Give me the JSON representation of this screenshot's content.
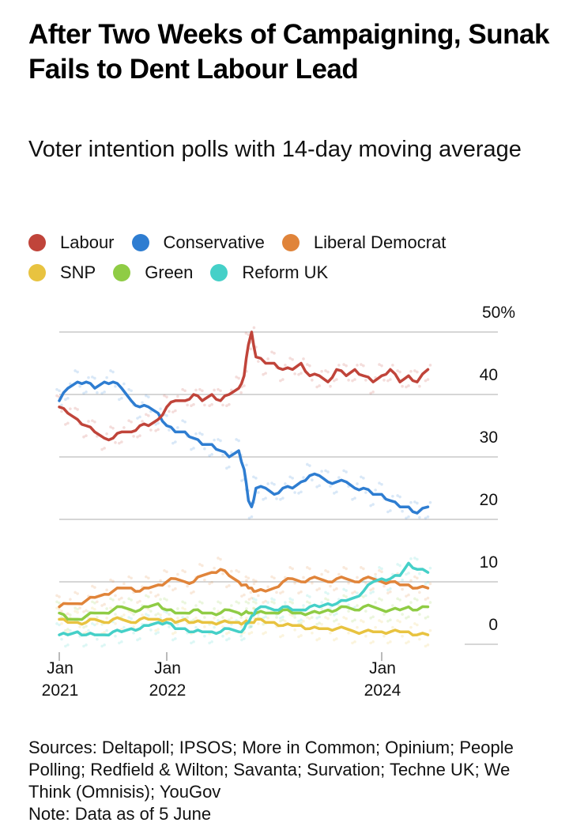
{
  "chart_data": {
    "type": "line",
    "title": "After Two Weeks of Campaigning, Sunak Fails to Dent Labour Lead",
    "subtitle": "Voter intention polls with 14-day moving average",
    "xlabel": "",
    "ylabel": "",
    "ylim": [
      0,
      50
    ],
    "yticks": [
      {
        "value": 50,
        "label": "50%"
      },
      {
        "value": 40,
        "label": "40"
      },
      {
        "value": 30,
        "label": "30"
      },
      {
        "value": 20,
        "label": "20"
      },
      {
        "value": 10,
        "label": "10"
      },
      {
        "value": 0,
        "label": "0"
      }
    ],
    "xlim": [
      2021.0,
      2024.43
    ],
    "xticks": [
      {
        "value": 2021.0,
        "line1": "Jan",
        "line2": "2021"
      },
      {
        "value": 2022.0,
        "line1": "Jan",
        "line2": "2022"
      },
      {
        "value": 2024.0,
        "line1": "Jan",
        "line2": "2024"
      }
    ],
    "grid": true,
    "legend_position": "top",
    "x": [
      2021.0,
      2021.08,
      2021.17,
      2021.25,
      2021.33,
      2021.42,
      2021.5,
      2021.58,
      2021.67,
      2021.75,
      2021.83,
      2021.92,
      2022.0,
      2022.08,
      2022.17,
      2022.25,
      2022.33,
      2022.42,
      2022.5,
      2022.58,
      2022.67,
      2022.72,
      2022.76,
      2022.79,
      2022.83,
      2022.92,
      2023.0,
      2023.08,
      2023.17,
      2023.25,
      2023.33,
      2023.42,
      2023.5,
      2023.58,
      2023.67,
      2023.75,
      2023.83,
      2023.92,
      2024.0,
      2024.08,
      2024.17,
      2024.25,
      2024.33,
      2024.43
    ],
    "series": [
      {
        "name": "Labour",
        "color": "#c0443a",
        "values": [
          38,
          37,
          36,
          35,
          34,
          33,
          33,
          34,
          34,
          35,
          35,
          36,
          38,
          39,
          39,
          40,
          39,
          40,
          39,
          40,
          41,
          43,
          48,
          50,
          46,
          45,
          45,
          44,
          44,
          45,
          43,
          43,
          42,
          44,
          43,
          44,
          43,
          42,
          43,
          44,
          42,
          43,
          42,
          44
        ]
      },
      {
        "name": "Conservative",
        "color": "#2e7dd1",
        "values": [
          39,
          41,
          42,
          42,
          41,
          42,
          42,
          41,
          39,
          38,
          38,
          37,
          35,
          34,
          34,
          33,
          32,
          32,
          31,
          30,
          31,
          28,
          23,
          22,
          25,
          25,
          24,
          25,
          25,
          26,
          27,
          27,
          26,
          26,
          26,
          25,
          25,
          24,
          24,
          23,
          22,
          22,
          21,
          22
        ]
      },
      {
        "name": "Liberal Democrat",
        "color": "#e0843a",
        "values": [
          6,
          6.5,
          6.5,
          7,
          7.5,
          8,
          8.5,
          9,
          9,
          8.5,
          9,
          9.5,
          10,
          10.5,
          10,
          10,
          11,
          11.5,
          12,
          11,
          10,
          9.5,
          9,
          9,
          8.5,
          8.5,
          9,
          10,
          10.5,
          10,
          10.5,
          10.5,
          10,
          10.5,
          10.5,
          10,
          10.5,
          10.5,
          10,
          10,
          9.5,
          9.5,
          9,
          9
        ]
      },
      {
        "name": "SNP",
        "color": "#e8c340",
        "values": [
          4,
          3.5,
          3.5,
          3.5,
          4,
          3.5,
          4,
          4,
          3.5,
          4,
          4,
          4,
          4,
          3.5,
          4,
          3.5,
          3.5,
          3.5,
          3.5,
          3.5,
          3.5,
          3.5,
          3.5,
          3.5,
          4,
          3.5,
          3.5,
          3,
          3,
          3,
          2.5,
          2.5,
          2.5,
          2.5,
          2.5,
          2,
          2,
          2,
          2,
          2,
          2,
          2,
          1.5,
          1.5
        ]
      },
      {
        "name": "Green",
        "color": "#8fcc45",
        "values": [
          5,
          4,
          4,
          4.5,
          5,
          5,
          5.5,
          6,
          5.5,
          5.5,
          6,
          6.5,
          5.5,
          5,
          5,
          5.5,
          5,
          5,
          5,
          5.5,
          5,
          5,
          5,
          5,
          5,
          5,
          5,
          5.5,
          5,
          5,
          5,
          5,
          5.5,
          5.5,
          6,
          5.5,
          6,
          6,
          5.5,
          5.5,
          5.5,
          6,
          5.5,
          6
        ]
      },
      {
        "name": "Reform UK",
        "color": "#45d0c8",
        "values": [
          1.5,
          1.5,
          2,
          1.5,
          1.5,
          1.5,
          2,
          2,
          2.5,
          2.5,
          3,
          3.5,
          3.5,
          2.5,
          2.5,
          2,
          2,
          2,
          2,
          2.5,
          2,
          2.5,
          3.5,
          4.5,
          5.5,
          6,
          5.5,
          6,
          5.5,
          5.5,
          6,
          6,
          6.5,
          6.5,
          7,
          7.5,
          8.5,
          10,
          10.5,
          10.5,
          11,
          13,
          12,
          11.5
        ]
      }
    ]
  },
  "header": {
    "title": "After Two Weeks of Campaigning, Sunak Fails to Dent Labour Lead",
    "subtitle": "Voter intention polls with 14-day moving average"
  },
  "legend": [
    {
      "label": "Labour",
      "color": "#c0443a"
    },
    {
      "label": "Conservative",
      "color": "#2e7dd1"
    },
    {
      "label": "Liberal Democrat",
      "color": "#e0843a"
    },
    {
      "label": "SNP",
      "color": "#e8c340"
    },
    {
      "label": "Green",
      "color": "#8fcc45"
    },
    {
      "label": "Reform UK",
      "color": "#45d0c8"
    }
  ],
  "footer": {
    "sources": "Sources: Deltapoll; IPSOS; More in Common; Opinium; People Polling; Redfield & Wilton; Savanta; Survation; Techne UK; We Think (Omnisis); YouGov",
    "note": "Note: Data as of 5 June"
  }
}
